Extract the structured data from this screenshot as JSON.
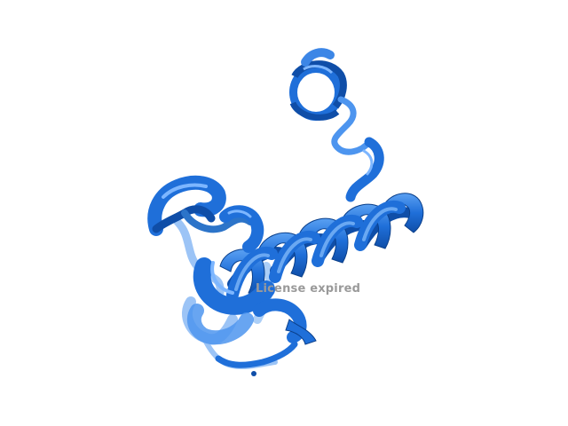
{
  "viewer": {
    "background_color": "#ffffff",
    "cartoon_colors": {
      "base": "#1f6fd9",
      "light": "#4d95ef",
      "dark": "#0f4ea8",
      "highlight": "#7db6ff",
      "shadow": "#2c74c9"
    },
    "watermark": "License expired",
    "watermark_color": "#9a9a9a"
  }
}
